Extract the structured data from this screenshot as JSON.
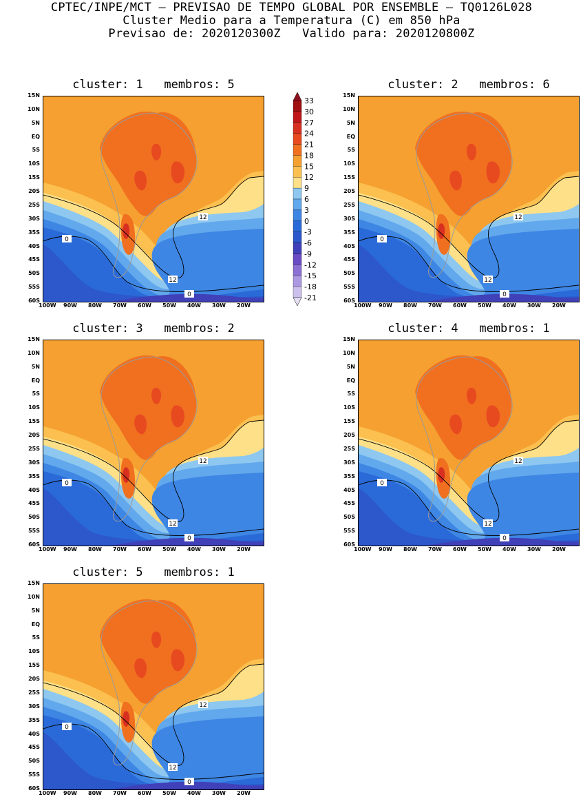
{
  "header": {
    "line1": "CPTEC/INPE/MCT — PREVISAO DE TEMPO GLOBAL POR ENSEMBLE — TQ0126L028",
    "line2": "Cluster Medio para a Temperatura (C) em 850 hPa",
    "line3": "Previsao de: 2020120300Z   Valido para: 2020120800Z"
  },
  "panels": [
    {
      "title": "cluster: 1   membros: 5",
      "contour_labels": [
        "12",
        "12",
        "0",
        "0"
      ]
    },
    {
      "title": "cluster: 2   membros: 6",
      "contour_labels": [
        "12",
        "12",
        "0",
        "0"
      ]
    },
    {
      "title": "cluster: 3   membros: 2",
      "contour_labels": [
        "12",
        "12",
        "0",
        "0"
      ]
    },
    {
      "title": "cluster: 4   membros: 1",
      "contour_labels": [
        "12",
        "12",
        "0",
        "0"
      ]
    },
    {
      "title": "cluster: 5   membros: 1",
      "contour_labels": [
        "12",
        "12",
        "0",
        "0"
      ]
    }
  ],
  "lat_labels": [
    "15N",
    "10N",
    "5N",
    "EQ",
    "5S",
    "10S",
    "15S",
    "20S",
    "25S",
    "30S",
    "35S",
    "40S",
    "45S",
    "50S",
    "55S",
    "60S"
  ],
  "lon_labels": [
    "100W",
    "90W",
    "80W",
    "70W",
    "60W",
    "50W",
    "40W",
    "30W",
    "20W"
  ],
  "legend": {
    "levels": [
      "33",
      "30",
      "27",
      "24",
      "21",
      "18",
      "15",
      "12",
      "9",
      "6",
      "3",
      "0",
      "-3",
      "-6",
      "-9",
      "-12",
      "-15",
      "-18",
      "-21"
    ],
    "colors": [
      "#a01010",
      "#c01818",
      "#d83020",
      "#e84a20",
      "#f07020",
      "#f5a030",
      "#fbc050",
      "#fde088",
      "#8ec8f0",
      "#62a8ec",
      "#3e86e4",
      "#2a6ad8",
      "#2c58cc",
      "#4040b8",
      "#6a4cc4",
      "#8c70d4",
      "#ac98e0",
      "#ccc0ec"
    ],
    "top_color": "#901020",
    "bottom_color": "#e6e0f5"
  },
  "palette": {
    "deep_orange": "#f07020",
    "orange": "#f5a030",
    "light_orange": "#fbc050",
    "yellow": "#fde088",
    "light_blue": "#8ec8f0",
    "blue": "#62a8ec",
    "mid_blue": "#3e86e4",
    "dark_blue": "#2a6ad8",
    "navy_blue": "#2c58cc",
    "purple": "#4040b8",
    "red": "#e84a20",
    "dark_red": "#d83020"
  }
}
